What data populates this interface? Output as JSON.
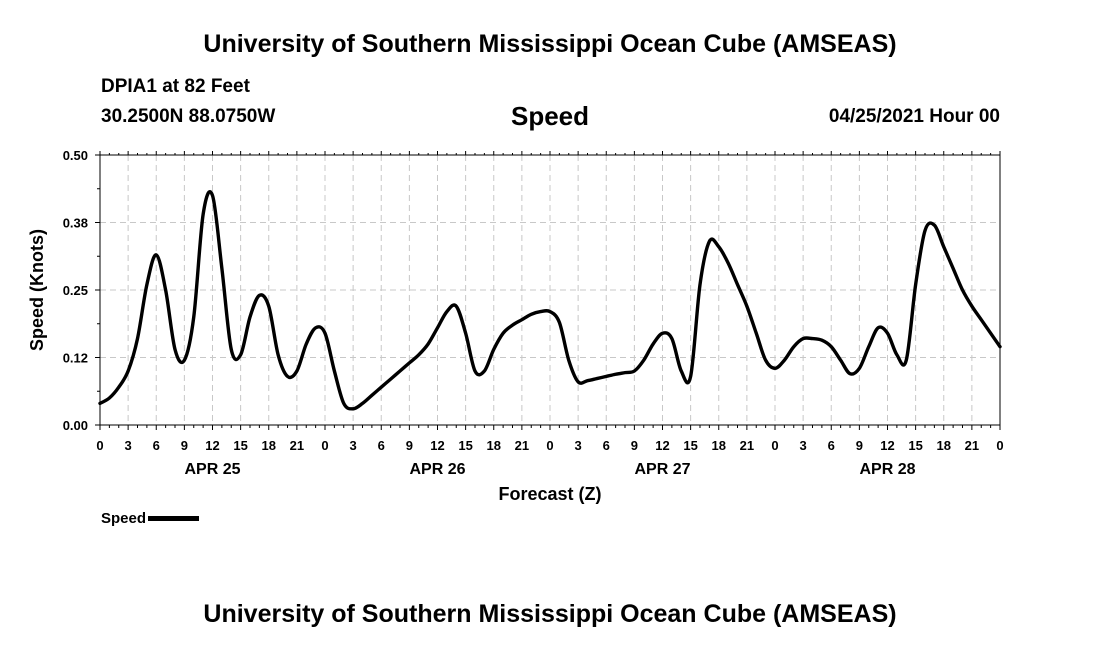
{
  "header": {
    "title_top": "University of Southern Mississippi Ocean Cube (AMSEAS)",
    "title_bottom": "University of Southern Mississippi Ocean Cube (AMSEAS)",
    "station": "DPIA1 at 82 Feet",
    "coords": "30.2500N  88.0750W",
    "variable": "Speed",
    "datetime": "04/25/2021 Hour 00"
  },
  "legend": {
    "label": "Speed"
  },
  "colors": {
    "line": "#000000",
    "grid": "#c8c8c8",
    "background": "#ffffff"
  },
  "chart_data": {
    "type": "line",
    "title": "Speed",
    "xlabel": "Forecast (Z)",
    "ylabel": "Speed (Knots)",
    "xlim": [
      0,
      96
    ],
    "ylim": [
      0,
      0.5
    ],
    "yticks": [
      0.0,
      0.125,
      0.25,
      0.375,
      0.5
    ],
    "ytick_labels": [
      "0.00",
      "0.12",
      "0.25",
      "0.38",
      "0.50"
    ],
    "xticks": [
      0,
      3,
      6,
      9,
      12,
      15,
      18,
      21,
      24,
      27,
      30,
      33,
      36,
      39,
      42,
      45,
      48,
      51,
      54,
      57,
      60,
      63,
      66,
      69,
      72,
      75,
      78,
      81,
      84,
      87,
      90,
      93,
      96
    ],
    "xtick_labels": [
      "0",
      "3",
      "6",
      "9",
      "12",
      "15",
      "18",
      "21",
      "0",
      "3",
      "6",
      "9",
      "12",
      "15",
      "18",
      "21",
      "0",
      "3",
      "6",
      "9",
      "12",
      "15",
      "18",
      "21",
      "0",
      "3",
      "6",
      "9",
      "12",
      "15",
      "18",
      "21",
      "0"
    ],
    "day_labels": [
      {
        "x": 12,
        "label": "APR 25"
      },
      {
        "x": 36,
        "label": "APR 26"
      },
      {
        "x": 60,
        "label": "APR 27"
      },
      {
        "x": 84,
        "label": "APR 28"
      }
    ],
    "grid": true,
    "series": [
      {
        "name": "Speed",
        "x": [
          0,
          1,
          2,
          3,
          4,
          5,
          6,
          7,
          8,
          9,
          10,
          11,
          12,
          13,
          14,
          15,
          16,
          17,
          18,
          19,
          20,
          21,
          22,
          23,
          24,
          25,
          26,
          27,
          28,
          29,
          30,
          31,
          32,
          33,
          34,
          35,
          36,
          37,
          38,
          39,
          40,
          41,
          42,
          43,
          44,
          45,
          46,
          47,
          48,
          49,
          50,
          51,
          52,
          53,
          54,
          55,
          56,
          57,
          58,
          59,
          60,
          61,
          62,
          63,
          64,
          65,
          66,
          67,
          68,
          69,
          70,
          71,
          72,
          73,
          74,
          75,
          76,
          77,
          78,
          79,
          80,
          81,
          82,
          83,
          84,
          85,
          86,
          87,
          88,
          89,
          90,
          91,
          92,
          93,
          94,
          95,
          96
        ],
        "values": [
          0.04,
          0.05,
          0.07,
          0.1,
          0.16,
          0.26,
          0.315,
          0.25,
          0.14,
          0.12,
          0.2,
          0.39,
          0.425,
          0.29,
          0.14,
          0.13,
          0.2,
          0.24,
          0.22,
          0.13,
          0.09,
          0.1,
          0.15,
          0.18,
          0.17,
          0.1,
          0.04,
          0.03,
          0.04,
          0.055,
          0.07,
          0.085,
          0.1,
          0.115,
          0.13,
          0.15,
          0.18,
          0.21,
          0.22,
          0.17,
          0.1,
          0.1,
          0.14,
          0.17,
          0.185,
          0.195,
          0.205,
          0.21,
          0.21,
          0.19,
          0.12,
          0.08,
          0.082,
          0.086,
          0.09,
          0.094,
          0.097,
          0.1,
          0.12,
          0.15,
          0.17,
          0.16,
          0.1,
          0.09,
          0.26,
          0.34,
          0.33,
          0.3,
          0.26,
          0.22,
          0.17,
          0.12,
          0.105,
          0.12,
          0.145,
          0.16,
          0.16,
          0.157,
          0.145,
          0.12,
          0.095,
          0.105,
          0.145,
          0.18,
          0.17,
          0.13,
          0.12,
          0.26,
          0.36,
          0.37,
          0.33,
          0.29,
          0.25,
          0.22,
          0.195,
          0.17,
          0.145
        ]
      }
    ]
  }
}
